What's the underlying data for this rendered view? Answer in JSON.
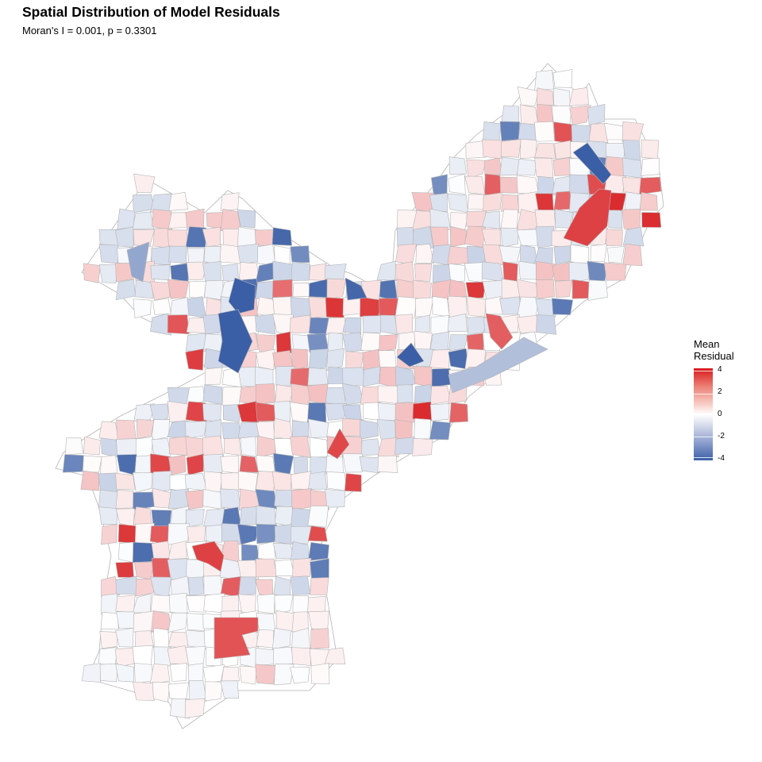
{
  "title": "Spatial Distribution of Model Residuals",
  "subtitle": "Moran's I = 0.001, p = 0.3301",
  "legend": {
    "title_line1": "Mean",
    "title_line2": "Residual",
    "ticks": [
      "4",
      "2",
      "0",
      "-2",
      "-4"
    ],
    "range": [
      -4,
      4
    ],
    "colors": {
      "high": "#d7191c",
      "mid": "#ffffff",
      "low": "#3b5fa6"
    }
  },
  "map": {
    "region_count_shown": 0,
    "border_color": "#b4b4b4",
    "background": "#ffffff"
  }
}
